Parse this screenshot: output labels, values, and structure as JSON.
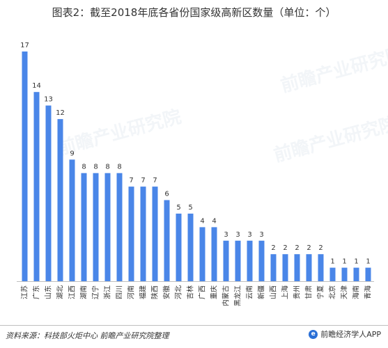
{
  "title": "图表2：截至2018年底各省份国家级高新区数量（单位：个）",
  "source": "资料来源：科技部火炬中心 前瞻产业研究院整理",
  "brand": "前瞻经济学人APP",
  "brand_logo_text": "e",
  "watermark": "前瞻产业研究院",
  "colors": {
    "bar": "#4a86e8",
    "text": "#333333",
    "axis": "#bfbfbf"
  },
  "chart_data": {
    "type": "bar",
    "categories": [
      "江苏",
      "广东",
      "山东",
      "湖北",
      "江西",
      "湖南",
      "辽宁",
      "浙江",
      "四川",
      "河南",
      "福建",
      "陕西",
      "安徽",
      "河北",
      "吉林",
      "广西",
      "重庆",
      "内蒙古",
      "黑龙江",
      "云南",
      "新疆",
      "山西",
      "上海",
      "贵州",
      "甘肃",
      "宁夏",
      "北京",
      "天津",
      "海南",
      "青海"
    ],
    "values": [
      17,
      14,
      13,
      12,
      9,
      8,
      8,
      8,
      8,
      7,
      7,
      7,
      6,
      5,
      5,
      4,
      4,
      3,
      3,
      3,
      3,
      2,
      2,
      2,
      2,
      2,
      1,
      1,
      1,
      1
    ],
    "ylim": [
      0,
      17
    ],
    "grid": false,
    "legend": "none"
  }
}
